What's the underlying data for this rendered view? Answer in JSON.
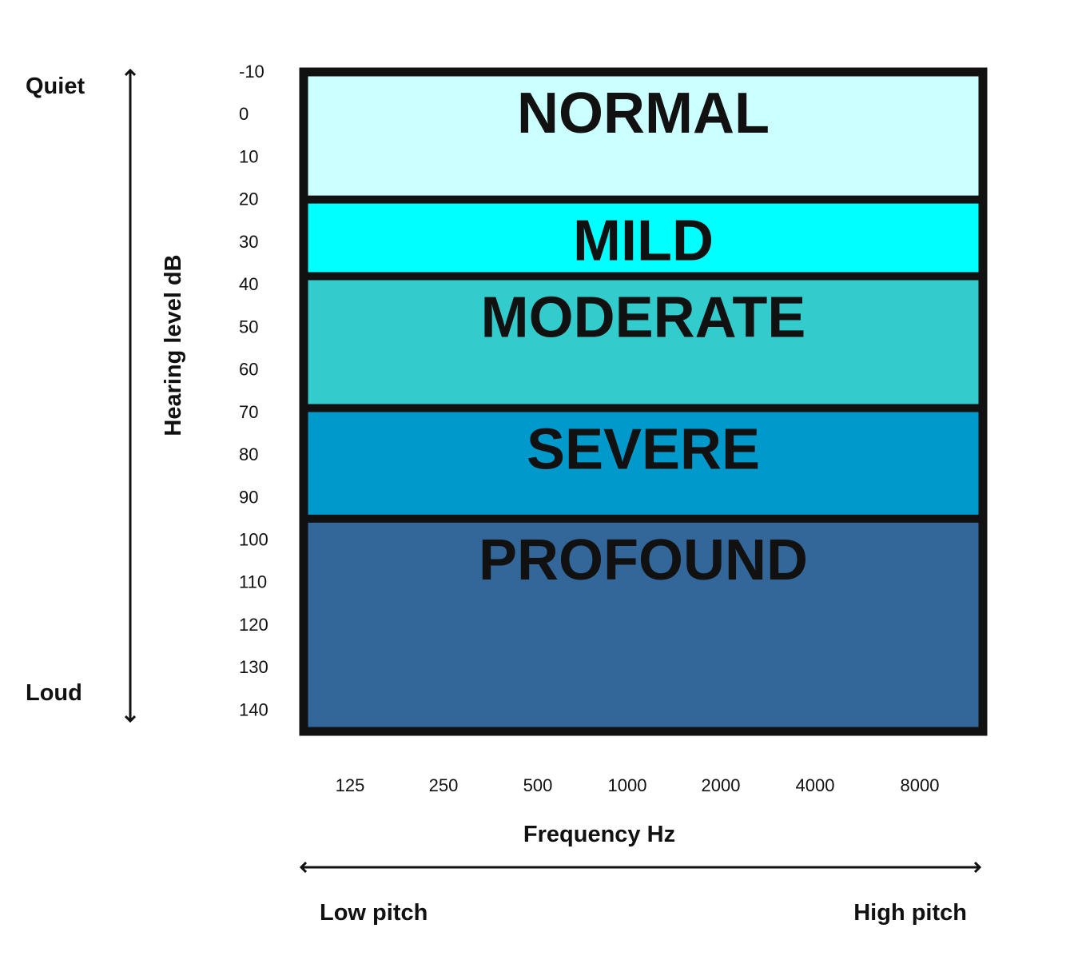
{
  "chart_data": {
    "type": "bar",
    "title": "",
    "xlabel": "Frequency Hz",
    "ylabel": "Hearing level dB",
    "x_categories": [
      "125",
      "250",
      "500",
      "1000",
      "2000",
      "4000",
      "8000"
    ],
    "y_ticks": [
      "-10",
      "0",
      "10",
      "20",
      "30",
      "40",
      "50",
      "60",
      "70",
      "80",
      "90",
      "100",
      "110",
      "120",
      "130",
      "140"
    ],
    "ylim": [
      -10,
      145
    ],
    "y_inverted": true,
    "grid": false,
    "bands": [
      {
        "label": "NORMAL",
        "from": -10,
        "to": 20,
        "color": "#ccffff"
      },
      {
        "label": "MILD",
        "from": 20,
        "to": 38,
        "color": "#00ffff"
      },
      {
        "label": "MODERATE",
        "from": 38,
        "to": 69,
        "color": "#33cccc"
      },
      {
        "label": "SEVERE",
        "from": 69,
        "to": 95,
        "color": "#0099cc"
      },
      {
        "label": "PROFOUND",
        "from": 95,
        "to": 145,
        "color": "#336699"
      }
    ],
    "y_arrow": {
      "top_label": "Quiet",
      "bottom_label": "Loud"
    },
    "x_arrow": {
      "left_label": "Low pitch",
      "right_label": "High pitch"
    }
  }
}
